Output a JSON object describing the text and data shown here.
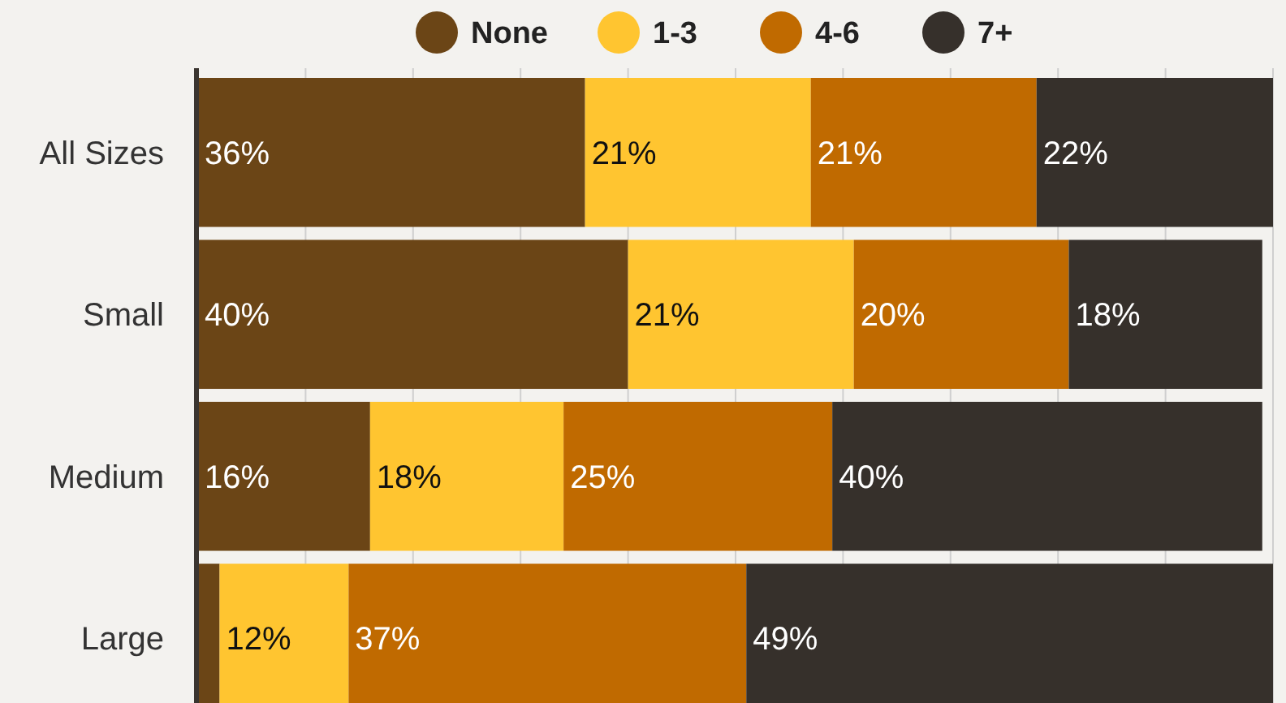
{
  "chart_data": {
    "type": "bar",
    "orientation": "horizontal",
    "stacked": true,
    "legend": "top",
    "grid": "x",
    "categories": [
      "All Sizes",
      "Small",
      "Medium",
      "Large"
    ],
    "xlim": [
      0,
      100
    ],
    "xticks": [
      {
        "value": 0,
        "label": null
      },
      {
        "value": 10,
        "label": null
      },
      {
        "value": 20,
        "label": null
      },
      {
        "value": 30,
        "label": null
      },
      {
        "value": 40,
        "label": null
      },
      {
        "value": 50,
        "label": null
      },
      {
        "value": 60,
        "label": null
      },
      {
        "value": 70,
        "label": null
      },
      {
        "value": 80,
        "label": null
      },
      {
        "value": 90,
        "label": null
      },
      {
        "value": 100,
        "label": null
      }
    ],
    "tick_labels": "y",
    "series": [
      {
        "name": "None",
        "color": "#6b4516",
        "values": [
          36,
          40,
          16,
          2
        ],
        "value_labels": [
          "36%",
          "40%",
          "16%",
          null
        ]
      },
      {
        "name": "1-3",
        "color": "#ffc530",
        "values": [
          21,
          21,
          18,
          12
        ],
        "value_labels": [
          "21%",
          "21%",
          "18%",
          "12%"
        ]
      },
      {
        "name": "4-6",
        "color": "#c06a00",
        "values": [
          21,
          20,
          25,
          37
        ],
        "value_labels": [
          "21%",
          "20%",
          "25%",
          "37%"
        ]
      },
      {
        "name": "7+",
        "color": "#36302b",
        "values": [
          22,
          18,
          40,
          49
        ],
        "value_labels": [
          "22%",
          "18%",
          "40%",
          "49%"
        ]
      }
    ]
  }
}
